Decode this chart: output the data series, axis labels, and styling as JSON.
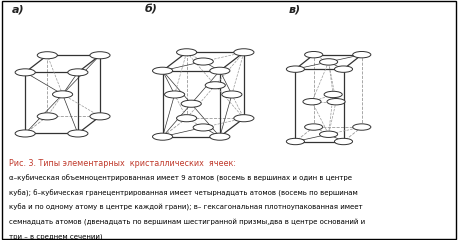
{
  "title_line": "Рис. 3. Типы элементарных  кристаллических  ячеек:",
  "cap_line1": "α–кубическая объемноцентрированная имеет 9 атомов (восемь в вершинах и один в центре",
  "cap_line2": "куба); б–кубическая гранецентрированная имеет четырнадцать атомов (восемь по вершинам",
  "cap_line3": "куба и по одному атому в центре каждой грани); в– гексагональная плотноупакованная имеет",
  "cap_line4": "семнадцать атомов (двенадцать по вершинам шестигранной призмы,два в центре оснований и",
  "cap_line5": "три – в среднем сечении)",
  "label_a": "а)",
  "label_b": "б)",
  "label_v": "в)",
  "bg_color": "#ffffff",
  "border_color": "#000000",
  "title_color": "#c0392b",
  "text_color": "#000000",
  "node_color": "#ffffff",
  "node_edge_color": "#333333",
  "line_color": "#333333",
  "dashed_color": "#999999",
  "lw_solid": 0.9,
  "lw_dashed": 0.6,
  "lw_diag": 0.5,
  "node_r": 0.022
}
